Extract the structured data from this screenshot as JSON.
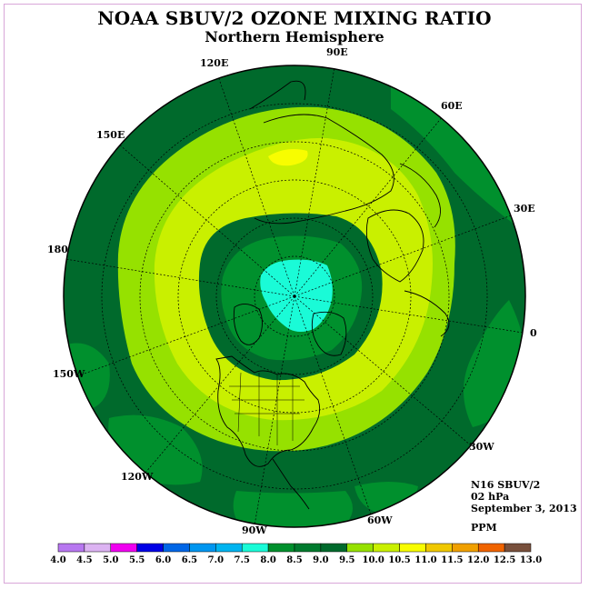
{
  "title": "NOAA SBUV/2 OZONE MIXING RATIO",
  "subtitle": "Northern Hemisphere",
  "info": {
    "instrument": "N16 SBUV/2",
    "level": "02 hPa",
    "date": "September 3, 2013",
    "units": "PPM"
  },
  "longitude_labels": [
    "0",
    "30E",
    "60E",
    "90E",
    "120E",
    "150E",
    "180",
    "150W",
    "120W",
    "90W",
    "60W",
    "30W"
  ],
  "colors": {
    "deep_green": "#006a2c",
    "mid_green": "#00902d",
    "yellow_green": "#96e100",
    "light_yellow_green": "#c9f000",
    "yellow": "#f8fd00",
    "aqua": "#1afbd7"
  },
  "colorbar": {
    "labels": [
      "4.0",
      "4.5",
      "5.0",
      "5.5",
      "6.0",
      "6.5",
      "7.0",
      "7.5",
      "8.0",
      "8.5",
      "9.0",
      "9.5",
      "10.0",
      "10.5",
      "11.0",
      "11.5",
      "12.0",
      "12.5",
      "13.0"
    ],
    "colors": [
      "#b777f0",
      "#dcb3f2",
      "#f000f0",
      "#0000e6",
      "#0066e6",
      "#0096f0",
      "#00b4f0",
      "#1afbd7",
      "#00902d",
      "#007a2e",
      "#006a2c",
      "#96e100",
      "#c9f000",
      "#f8fd00",
      "#f0c800",
      "#f0a000",
      "#f06400",
      "#e60000",
      "#78503c"
    ]
  }
}
